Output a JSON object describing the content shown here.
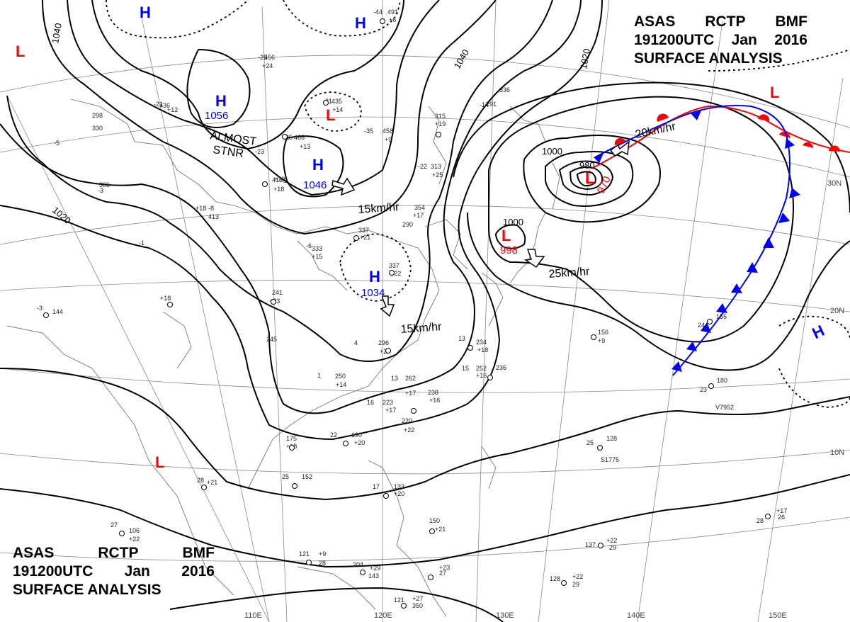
{
  "title_top": {
    "line1": [
      "ASAS",
      "RCTP",
      "BMF"
    ],
    "line2": [
      "191200UTC",
      "Jan",
      "2016"
    ],
    "line3": "SURFACE ANALYSIS"
  },
  "title_bottom": {
    "line1": [
      "ASAS",
      "RCTP",
      "BMF"
    ],
    "line2": [
      "191200UTC",
      "Jan",
      "2016"
    ],
    "line3": "SURFACE ANALYSIS"
  },
  "high_centers": [
    {
      "symbol": "H",
      "pressure": ""
    },
    {
      "symbol": "H",
      "pressure": ""
    },
    {
      "symbol": "H",
      "pressure": "1056"
    },
    {
      "symbol": "H",
      "pressure": "1046"
    },
    {
      "symbol": "H",
      "pressure": "1034"
    },
    {
      "symbol": "H",
      "pressure": ""
    }
  ],
  "low_centers": [
    {
      "symbol": "L",
      "pressure": ""
    },
    {
      "symbol": "L",
      "pressure": ""
    },
    {
      "symbol": "L",
      "pressure": "970"
    },
    {
      "symbol": "L",
      "pressure": "998"
    },
    {
      "symbol": "L",
      "pressure": ""
    },
    {
      "symbol": "L",
      "pressure": ""
    }
  ],
  "isobar_labels": [
    "1040",
    "1040",
    "1020",
    "1020",
    "1000",
    "1000",
    "980"
  ],
  "motion_labels": [
    "ALMOST",
    "STNR",
    "15km/hr",
    "15km/hr",
    "20km/hr",
    "25km/hr"
  ],
  "lat_labels": [
    "30N",
    "20N",
    "10N"
  ],
  "lon_labels": [
    "110E",
    "120E",
    "130E",
    "140E",
    "150E"
  ],
  "stations": [
    "-44",
    "491",
    "+6",
    "-25",
    "456",
    "+24",
    "-21",
    "436",
    "+12",
    "-31",
    "435",
    "+14",
    "-35",
    "458",
    "+9",
    "-25",
    "466",
    "+13",
    "-23",
    "416",
    "+18",
    "315",
    "+19",
    "-14",
    "291",
    "336",
    "-22",
    "313",
    "+25",
    "354",
    "+17",
    "290",
    "337",
    "+21",
    "-6",
    "333",
    "+15",
    "-1",
    "+18",
    "241",
    "+23",
    "337",
    "+22",
    "-3",
    "144",
    "4",
    "296",
    "+20",
    "245",
    "1",
    "250",
    "+14",
    "13",
    "262",
    "+17",
    "238",
    "+16",
    "16",
    "223",
    "+17",
    "220",
    "+22",
    "22",
    "190",
    "+20",
    "175",
    "+18",
    "13",
    "234",
    "+18",
    "15",
    "252",
    "+16",
    "236",
    "156",
    "+9",
    "24",
    "155",
    "23",
    "180",
    "V7952",
    "25",
    "128",
    "S1775",
    "28",
    "+21",
    "25",
    "152",
    "27",
    "106",
    "+22",
    "17",
    "133",
    "+20",
    "150",
    "+21",
    "28",
    "+17",
    "26",
    "137",
    "+22",
    "29",
    "121",
    "+9",
    "28",
    "204",
    "+29",
    "143",
    "+23",
    "27",
    "128",
    "+22",
    "29",
    "121",
    "+27",
    "350",
    "330",
    "298",
    "-5",
    "-3",
    "386",
    "+18",
    "-8",
    "413",
    "+19",
    "5"
  ]
}
